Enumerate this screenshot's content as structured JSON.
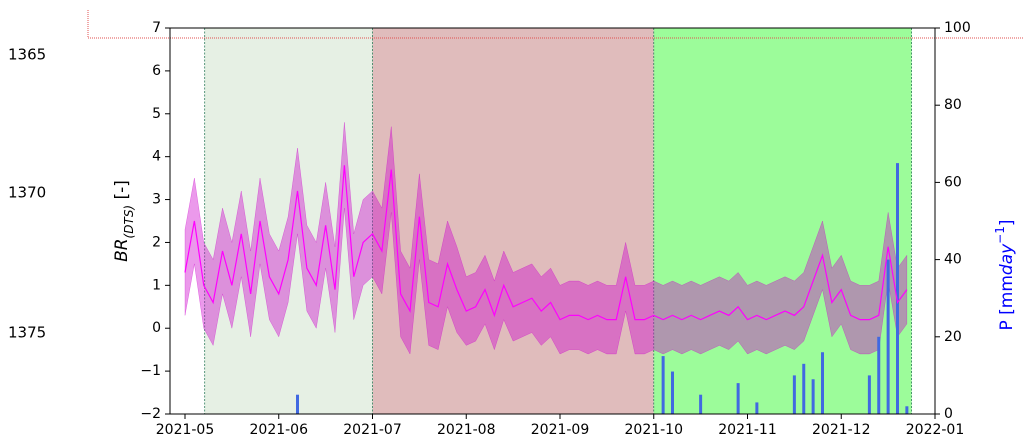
{
  "line_numbers": [
    "1365",
    "1370",
    "1375"
  ],
  "chart_data": {
    "type": "line",
    "ylabel": [
      "BR",
      "(DTS)",
      " [-]"
    ],
    "y2label": [
      "P [mm",
      "day",
      "−1",
      "]"
    ],
    "categories": [
      "2021-05",
      null,
      null,
      null,
      null,
      null,
      null,
      null,
      null,
      null,
      "2021-06",
      null,
      null,
      null,
      null,
      null,
      null,
      null,
      null,
      null,
      "2021-07",
      null,
      null,
      null,
      null,
      null,
      null,
      null,
      null,
      null,
      "2021-08",
      null,
      null,
      null,
      null,
      null,
      null,
      null,
      null,
      null,
      "2021-09",
      null,
      null,
      null,
      null,
      null,
      null,
      null,
      null,
      null,
      "2021-10",
      null,
      null,
      null,
      null,
      null,
      null,
      null,
      null,
      null,
      "2021-11",
      null,
      null,
      null,
      null,
      null,
      null,
      null,
      null,
      null,
      "2021-12",
      null,
      null,
      null,
      null,
      null,
      null,
      null,
      null,
      null,
      "2022-01"
    ],
    "series": [
      {
        "color": "#ff00ff",
        "values": [
          1.3,
          2.5,
          1.0,
          0.6,
          1.8,
          1.0,
          2.2,
          0.8,
          2.5,
          1.2,
          0.8,
          1.6,
          3.2,
          1.4,
          1.0,
          2.4,
          0.9,
          3.8,
          1.2,
          2.0,
          2.2,
          1.8,
          3.7,
          0.8,
          0.4,
          2.6,
          0.6,
          0.5,
          1.5,
          0.9,
          0.4,
          0.5,
          0.9,
          0.3,
          1.0,
          0.5,
          0.6,
          0.7,
          0.4,
          0.6,
          0.2,
          0.3,
          0.3,
          0.2,
          0.3,
          0.2,
          0.2,
          1.2,
          0.2,
          0.2,
          0.3,
          0.2,
          0.3,
          0.2,
          0.3,
          0.2,
          0.3,
          0.4,
          0.3,
          0.5,
          0.2,
          0.3,
          0.2,
          0.3,
          0.4,
          0.3,
          0.5,
          1.1,
          1.7,
          0.6,
          0.9,
          0.3,
          0.2,
          0.2,
          0.3,
          1.9,
          0.6,
          0.9,
          null,
          null,
          null
        ]
      }
    ],
    "band": {
      "color": "#cc00cc",
      "upper": [
        2.3,
        3.5,
        2.0,
        1.6,
        2.8,
        2.0,
        3.2,
        1.8,
        3.5,
        2.2,
        1.8,
        2.6,
        4.2,
        2.4,
        2.0,
        3.4,
        1.9,
        4.8,
        2.2,
        3.0,
        3.2,
        2.8,
        4.7,
        1.8,
        1.4,
        3.6,
        1.6,
        1.5,
        2.5,
        1.9,
        1.2,
        1.3,
        1.7,
        1.1,
        1.8,
        1.3,
        1.4,
        1.5,
        1.2,
        1.4,
        1.0,
        1.1,
        1.1,
        1.0,
        1.1,
        1.0,
        1.0,
        2.0,
        1.0,
        1.0,
        1.1,
        1.0,
        1.1,
        1.0,
        1.1,
        1.0,
        1.1,
        1.2,
        1.1,
        1.3,
        1.0,
        1.1,
        1.0,
        1.1,
        1.2,
        1.1,
        1.3,
        1.9,
        2.5,
        1.4,
        1.7,
        1.1,
        1.0,
        1.0,
        1.1,
        2.7,
        1.4,
        1.7,
        null,
        null,
        null
      ],
      "lower": [
        0.3,
        1.5,
        0.0,
        -0.4,
        0.8,
        0.0,
        1.2,
        -0.2,
        1.5,
        0.2,
        -0.2,
        0.6,
        2.2,
        0.4,
        0.0,
        1.4,
        -0.1,
        2.8,
        0.2,
        1.0,
        1.2,
        0.8,
        2.7,
        -0.2,
        -0.6,
        1.6,
        -0.4,
        -0.5,
        0.5,
        -0.1,
        -0.4,
        -0.3,
        0.1,
        -0.5,
        0.2,
        -0.3,
        -0.2,
        -0.1,
        -0.4,
        -0.2,
        -0.6,
        -0.5,
        -0.5,
        -0.6,
        -0.5,
        -0.6,
        -0.6,
        0.4,
        -0.6,
        -0.6,
        -0.5,
        -0.6,
        -0.5,
        -0.6,
        -0.5,
        -0.6,
        -0.5,
        -0.4,
        -0.5,
        -0.3,
        -0.6,
        -0.5,
        -0.6,
        -0.5,
        -0.4,
        -0.5,
        -0.3,
        0.3,
        0.9,
        -0.2,
        0.1,
        -0.5,
        -0.6,
        -0.6,
        -0.5,
        1.1,
        -0.2,
        0.1,
        null,
        null,
        null
      ]
    },
    "bars": {
      "axis": "y2",
      "color": "#4169e1",
      "values": [
        0,
        0,
        0,
        0,
        0,
        0,
        0,
        0,
        0,
        0,
        0,
        0,
        5,
        0,
        0,
        0,
        0,
        0,
        0,
        0,
        0,
        0,
        0,
        0,
        0,
        0,
        0,
        0,
        0,
        0,
        0,
        0,
        0,
        0,
        0,
        0,
        0,
        0,
        0,
        0,
        0,
        0,
        0,
        0,
        0,
        0,
        0,
        0,
        0,
        0,
        0,
        15,
        11,
        0,
        0,
        5,
        0,
        0,
        0,
        8,
        0,
        3,
        0,
        0,
        0,
        10,
        13,
        9,
        16,
        0,
        0,
        0,
        0,
        10,
        20,
        40,
        65,
        2,
        0,
        0,
        0
      ]
    },
    "ylim": [
      -2,
      7
    ],
    "yticks": [
      {
        "value": -2,
        "label": "−2"
      },
      {
        "value": -1,
        "label": "−1"
      },
      0,
      1,
      2,
      3,
      4,
      5,
      6,
      7
    ],
    "y2lim": [
      0,
      100
    ],
    "y2ticks": [
      0,
      20,
      40,
      60,
      80,
      100
    ]
  }
}
